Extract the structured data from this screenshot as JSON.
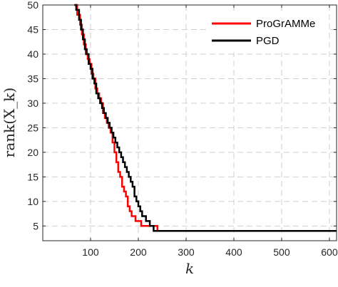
{
  "chart_data": {
    "type": "line",
    "xlabel": "k",
    "ylabel": "rank(X_k)",
    "xlim": [
      0,
      615
    ],
    "ylim": [
      2,
      50
    ],
    "xticks": [
      100,
      200,
      300,
      400,
      500,
      600
    ],
    "yticks": [
      5,
      10,
      15,
      20,
      25,
      30,
      35,
      40,
      45,
      50
    ],
    "grid": true,
    "legend_position": "top-right",
    "series": [
      {
        "name": "ProGrAMMe",
        "color": "#ff0000",
        "x": [
          68,
          72,
          78,
          82,
          86,
          90,
          94,
          98,
          102,
          106,
          110,
          114,
          118,
          122,
          126,
          130,
          134,
          138,
          142,
          146,
          150,
          154,
          158,
          162,
          166,
          170,
          174,
          178,
          182,
          186,
          190,
          194,
          198,
          202,
          206,
          210,
          214,
          218,
          222,
          226,
          232,
          240,
          250,
          300,
          400,
          500,
          572,
          580,
          600,
          615
        ],
        "y": [
          50,
          48,
          46,
          44,
          42,
          40,
          39,
          38,
          36,
          35,
          33,
          32,
          31,
          30,
          28,
          27,
          26,
          25,
          24,
          22,
          20,
          18,
          16,
          15,
          13,
          12,
          11,
          9,
          8,
          7,
          7,
          6,
          6,
          6,
          5,
          5,
          5,
          5,
          5,
          5,
          5,
          4,
          4,
          4,
          4,
          4,
          4,
          4,
          4,
          4
        ]
      },
      {
        "name": "PGD",
        "color": "#000000",
        "x": [
          66,
          70,
          76,
          80,
          84,
          88,
          92,
          96,
          100,
          104,
          108,
          112,
          116,
          120,
          124,
          128,
          132,
          136,
          140,
          144,
          148,
          152,
          156,
          160,
          164,
          168,
          172,
          176,
          180,
          184,
          188,
          192,
          196,
          200,
          204,
          208,
          212,
          216,
          220,
          224,
          228,
          232,
          240,
          300,
          400,
          500,
          600,
          615
        ],
        "y": [
          50,
          49,
          47,
          45,
          43,
          41,
          40,
          38,
          37,
          35,
          34,
          32,
          31,
          30,
          29,
          28,
          27,
          26,
          25,
          24,
          23,
          22,
          21,
          20,
          19,
          18,
          17,
          16,
          15,
          14,
          13,
          11,
          10,
          9,
          8,
          7,
          7,
          6,
          6,
          5,
          5,
          4,
          4,
          4,
          4,
          4,
          4,
          4
        ]
      }
    ]
  }
}
